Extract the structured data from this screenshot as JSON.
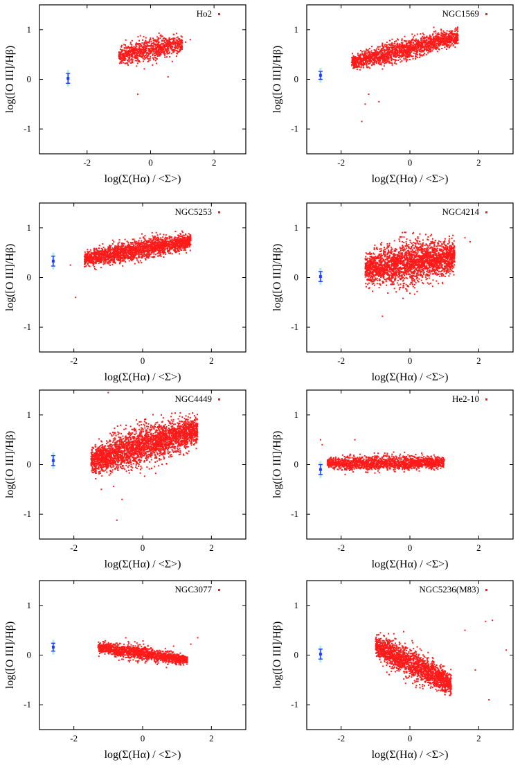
{
  "figure": {
    "xlabel": "log(Σ(Hα) / <Σ>)",
    "ylabel": "log([O III]/Hβ)",
    "x_ticks": [
      "-2",
      "0",
      "2"
    ],
    "y_ticks": [
      "1",
      "0",
      "-1"
    ],
    "colors": {
      "points": "#ff1a1a",
      "errorbar": "#1e3cff",
      "errorbar_sys": "#aaf0f0",
      "axes": "#000000"
    }
  },
  "chart_data": [
    {
      "type": "scatter",
      "title": "Ho2",
      "xlim": [
        -3.5,
        3.0
      ],
      "ylim": [
        -1.5,
        1.5
      ],
      "xlabel": "log(Σ(Hα) / <Σ>)",
      "ylabel": "log([O III]/Hβ)",
      "x_ticks": [
        -2,
        0,
        2
      ],
      "y_ticks": [
        -1,
        0,
        1
      ],
      "cloud": {
        "x_range": [
          -1.0,
          1.0
        ],
        "y_center": 0.6,
        "y_spread": 0.22,
        "slope": 0.12,
        "n_points": 900
      },
      "extra_points": [
        [
          1.1,
          0.75
        ],
        [
          1.25,
          0.8
        ],
        [
          0.55,
          0.05
        ],
        [
          -0.4,
          -0.3
        ]
      ],
      "errorbar": {
        "x": -2.6,
        "y": 0.02,
        "yerr": 0.1,
        "yerr_sys": 0.17
      }
    },
    {
      "type": "scatter",
      "title": "NGC1569",
      "xlim": [
        -3.0,
        3.0
      ],
      "ylim": [
        -1.5,
        1.5
      ],
      "xlabel": "log(Σ(Hα) / <Σ>)",
      "ylabel": "log([O III]/Hβ)",
      "x_ticks": [
        -2,
        0,
        2
      ],
      "y_ticks": [
        -1,
        0,
        1
      ],
      "cloud": {
        "x_range": [
          -1.7,
          1.4
        ],
        "y_center": 0.6,
        "y_spread": 0.2,
        "slope": 0.17,
        "n_points": 1800
      },
      "extra_points": [
        [
          -1.4,
          -0.85
        ],
        [
          -1.3,
          -0.5
        ],
        [
          -1.2,
          -0.3
        ],
        [
          -0.9,
          -0.45
        ]
      ],
      "errorbar": {
        "x": -2.6,
        "y": 0.08,
        "yerr": 0.08,
        "yerr_sys": 0.15
      }
    },
    {
      "type": "scatter",
      "title": "NGC5253",
      "xlim": [
        -3.0,
        3.0
      ],
      "ylim": [
        -1.5,
        1.5
      ],
      "xlabel": "log(Σ(Hα) / <Σ>)",
      "ylabel": "log([O III]/Hβ)",
      "x_ticks": [
        -2,
        0,
        2
      ],
      "y_ticks": [
        -1,
        0,
        1
      ],
      "cloud": {
        "x_range": [
          -1.7,
          1.4
        ],
        "y_center": 0.55,
        "y_spread": 0.2,
        "slope": 0.12,
        "n_points": 2200
      },
      "extra_points": [
        [
          -1.95,
          -0.4
        ],
        [
          -2.1,
          0.25
        ]
      ],
      "errorbar": {
        "x": -2.6,
        "y": 0.33,
        "yerr": 0.1,
        "yerr_sys": 0.17
      }
    },
    {
      "type": "scatter",
      "title": "NGC4214",
      "xlim": [
        -3.0,
        3.0
      ],
      "ylim": [
        -1.5,
        1.5
      ],
      "xlabel": "log(Σ(Hα) / <Σ>)",
      "ylabel": "log([O III]/Hβ)",
      "x_ticks": [
        -2,
        0,
        2
      ],
      "y_ticks": [
        -1,
        0,
        1
      ],
      "cloud": {
        "x_range": [
          -1.3,
          1.3
        ],
        "y_center": 0.3,
        "y_spread": 0.42,
        "slope": 0.1,
        "n_points": 2600
      },
      "extra_points": [
        [
          1.6,
          0.8
        ],
        [
          1.75,
          0.72
        ],
        [
          -0.8,
          -0.78
        ]
      ],
      "errorbar": {
        "x": -2.6,
        "y": 0.02,
        "yerr": 0.1,
        "yerr_sys": 0.17
      }
    },
    {
      "type": "scatter",
      "title": "NGC4449",
      "xlim": [
        -3.0,
        3.0
      ],
      "ylim": [
        -1.5,
        1.5
      ],
      "xlabel": "log(Σ(Hα) / <Σ>)",
      "ylabel": "log([O III]/Hβ)",
      "x_ticks": [
        -2,
        0,
        2
      ],
      "y_ticks": [
        -1,
        0,
        1
      ],
      "cloud": {
        "x_range": [
          -1.5,
          1.6
        ],
        "y_center": 0.38,
        "y_spread": 0.38,
        "slope": 0.2,
        "n_points": 3000
      },
      "extra_points": [
        [
          -1.0,
          1.45
        ],
        [
          -0.75,
          -1.12
        ],
        [
          -0.6,
          -0.7
        ],
        [
          -1.2,
          -0.5
        ]
      ],
      "errorbar": {
        "x": -2.6,
        "y": 0.08,
        "yerr": 0.1,
        "yerr_sys": 0.17
      }
    },
    {
      "type": "scatter",
      "title": "He2-10",
      "xlim": [
        -3.0,
        3.0
      ],
      "ylim": [
        -1.5,
        1.5
      ],
      "xlabel": "log(Σ(Hα) / <Σ>)",
      "ylabel": "log([O III]/Hβ)",
      "x_ticks": [
        -2,
        0,
        2
      ],
      "y_ticks": [
        -1,
        0,
        1
      ],
      "cloud": {
        "x_range": [
          -2.4,
          1.0
        ],
        "y_center": 0.03,
        "y_spread": 0.15,
        "slope": 0.0,
        "n_points": 1700
      },
      "extra_points": [
        [
          -2.6,
          0.5
        ],
        [
          -2.55,
          0.4
        ],
        [
          -1.6,
          0.5
        ]
      ],
      "errorbar": {
        "x": -2.6,
        "y": -0.1,
        "yerr": 0.1,
        "yerr_sys": 0.17
      }
    },
    {
      "type": "scatter",
      "title": "NGC3077",
      "xlim": [
        -3.0,
        3.0
      ],
      "ylim": [
        -1.5,
        1.5
      ],
      "xlabel": "log(Σ(Hα) / <Σ>)",
      "ylabel": "log([O III]/Hβ)",
      "x_ticks": [
        -2,
        0,
        2
      ],
      "y_ticks": [
        -1,
        0,
        1
      ],
      "cloud": {
        "x_range": [
          -1.3,
          1.3
        ],
        "y_center": 0.03,
        "y_spread": 0.14,
        "slope": -0.1,
        "n_points": 1500
      },
      "extra_points": [
        [
          1.6,
          0.35
        ],
        [
          1.4,
          0.22
        ],
        [
          0.9,
          0.18
        ]
      ],
      "errorbar": {
        "x": -2.6,
        "y": 0.16,
        "yerr": 0.08,
        "yerr_sys": 0.15
      }
    },
    {
      "type": "scatter",
      "title": "NGC5236(M83)",
      "xlim": [
        -3.0,
        3.0
      ],
      "ylim": [
        -1.5,
        1.5
      ],
      "xlabel": "log(Σ(Hα) / <Σ>)",
      "ylabel": "log([O III]/Hβ)",
      "x_ticks": [
        -2,
        0,
        2
      ],
      "y_ticks": [
        -1,
        0,
        1
      ],
      "cloud": {
        "x_range": [
          -1.0,
          1.2
        ],
        "y_center": -0.2,
        "y_spread": 0.3,
        "slope": -0.35,
        "n_points": 1900
      },
      "extra_points": [
        [
          2.4,
          0.7
        ],
        [
          2.2,
          0.68
        ],
        [
          2.8,
          0.1
        ],
        [
          2.3,
          -0.9
        ],
        [
          1.6,
          0.5
        ],
        [
          1.9,
          -0.3
        ]
      ],
      "errorbar": {
        "x": -2.6,
        "y": 0.02,
        "yerr": 0.1,
        "yerr_sys": 0.17
      }
    }
  ]
}
